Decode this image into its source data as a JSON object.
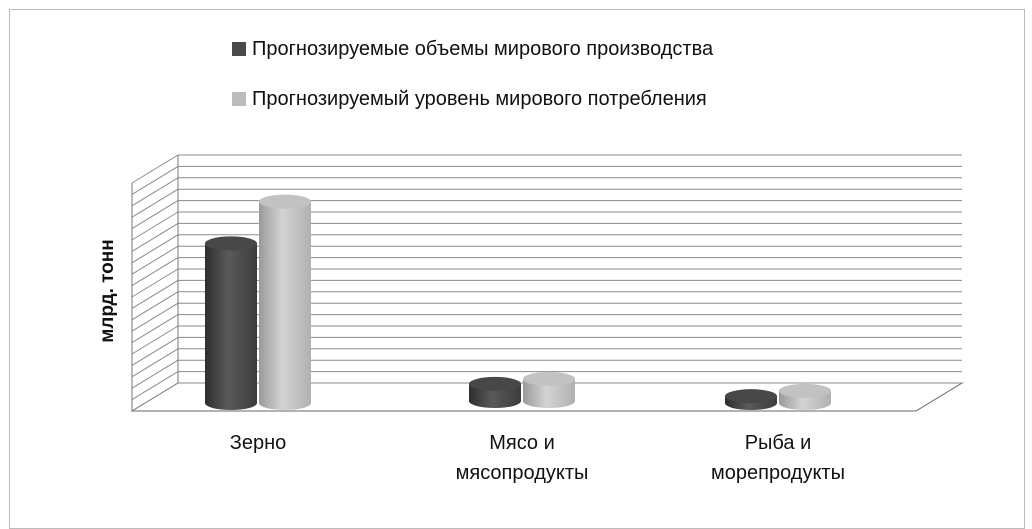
{
  "chart_data": {
    "type": "bar",
    "categories": [
      "Зерно",
      "Мясо и\nмясопродукты",
      "Рыба и\nморепродукты"
    ],
    "series": [
      {
        "name": "Прогнозируемые объемы мирового производства",
        "values": [
          4.2,
          0.45,
          0.18
        ],
        "color": "#4a4a4a"
      },
      {
        "name": "Прогнозируемый уровень мирового потребления",
        "values": [
          5.3,
          0.58,
          0.32
        ],
        "color": "#bcbcbc"
      }
    ],
    "title": "",
    "xlabel": "",
    "ylabel": "млрд. тонн",
    "ylim": [
      0,
      6.0
    ],
    "grid": true,
    "legend": "top"
  }
}
